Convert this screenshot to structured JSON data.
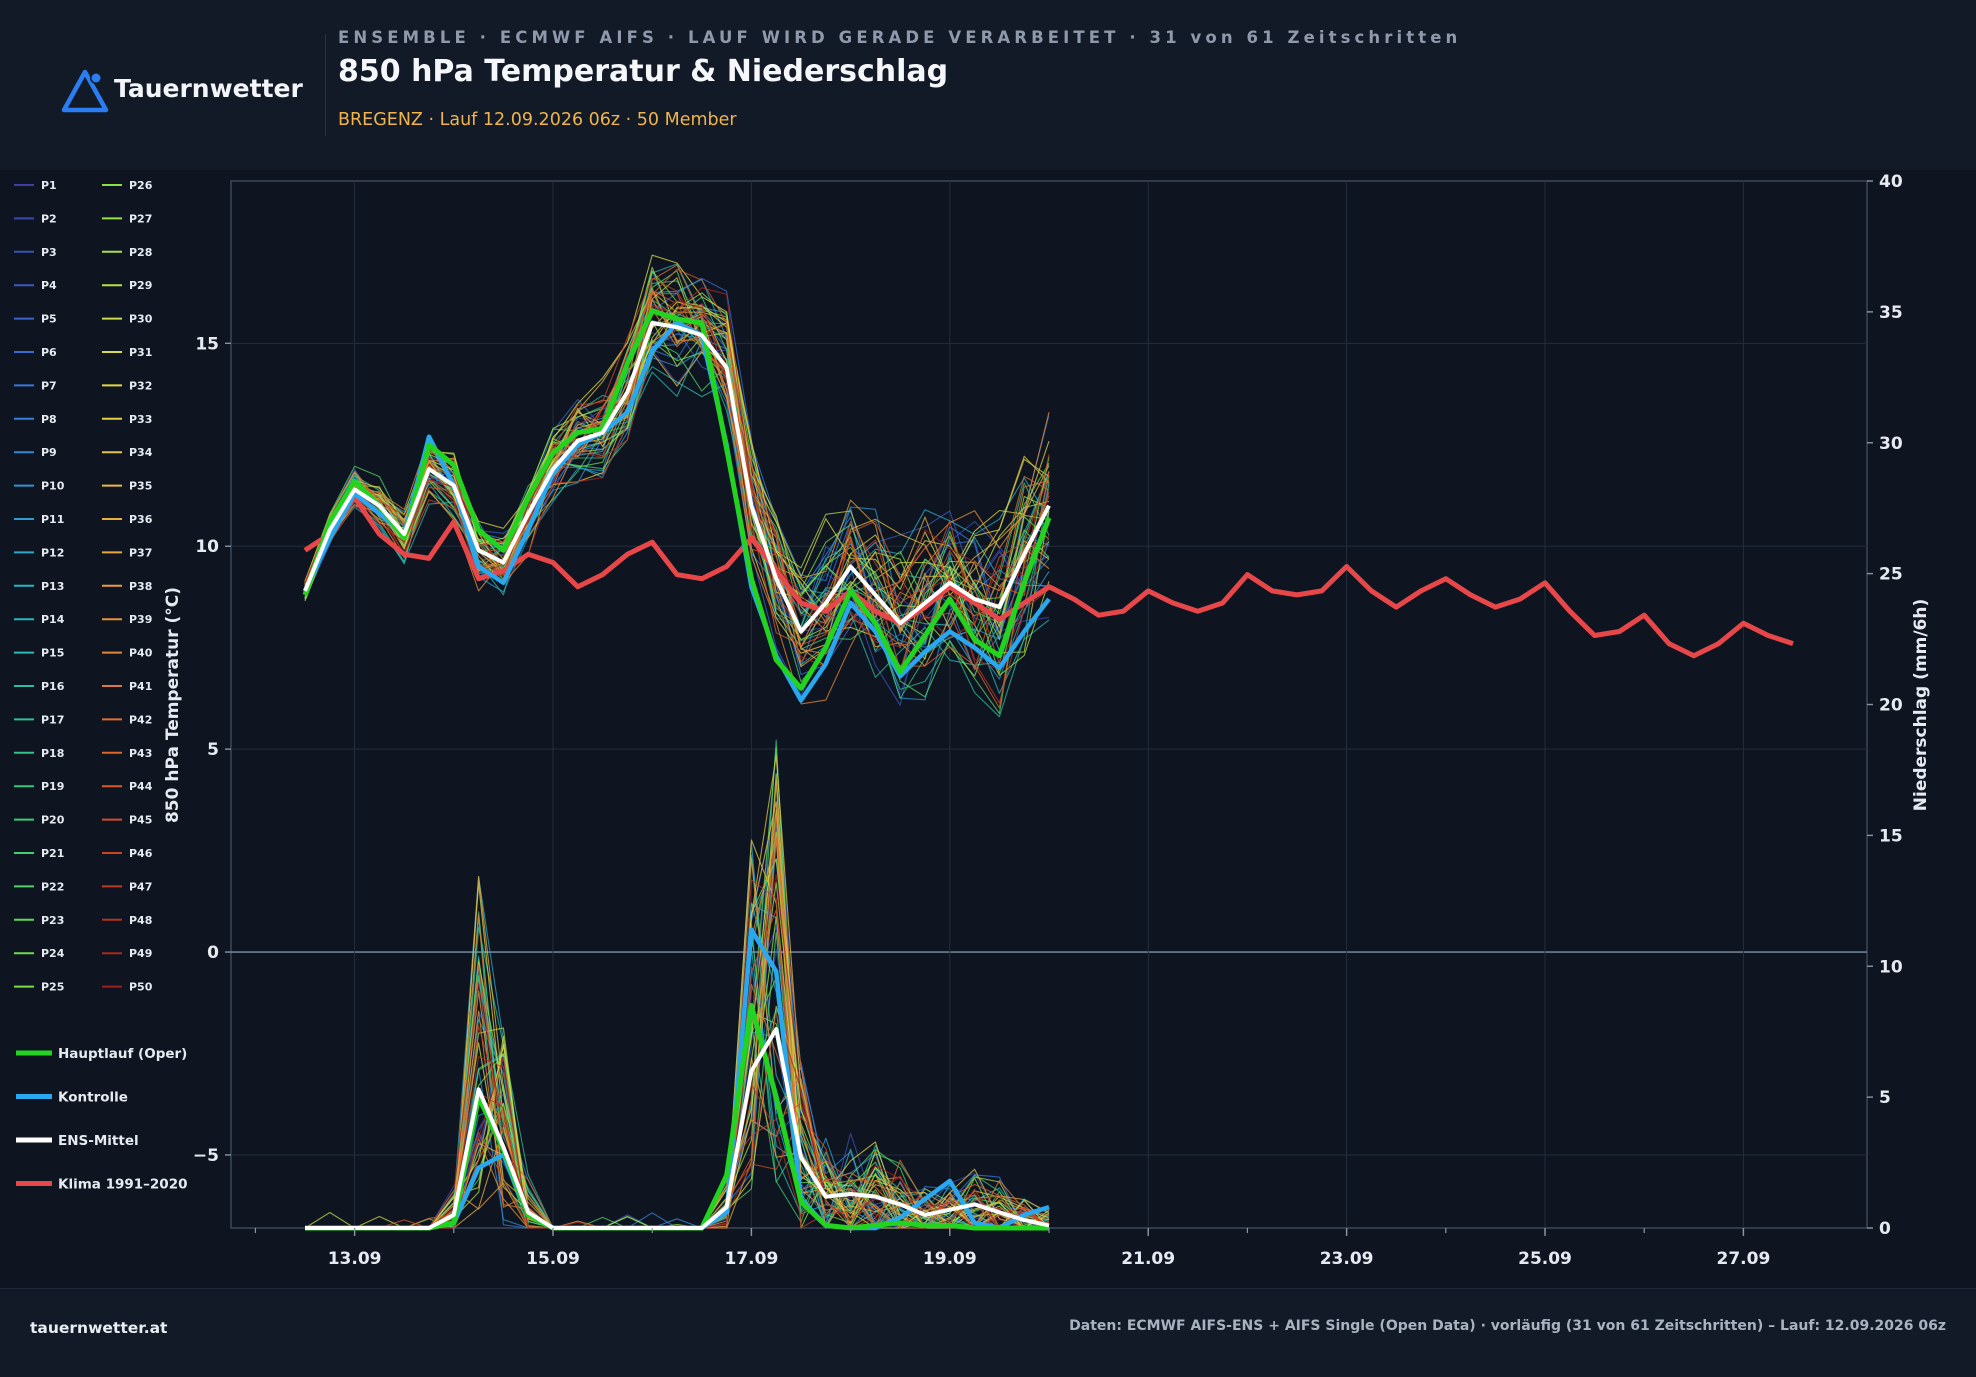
{
  "header": {
    "brand": "Tauernwetter",
    "kicker": "ENSEMBLE · ECMWF AIFS · LAUF WIRD GERADE VERARBEITET · 31 von 61 Zeitschritten",
    "title": "850 hPa Temperatur & Niederschlag",
    "subtitle": "BREGENZ · Lauf 12.09.2026 06z · 50 Member"
  },
  "footer": {
    "site": "tauernwetter.at",
    "source": "Daten: ECMWF AIFS-ENS + AIFS Single (Open Data) · vorläufig (31 von 61 Zeitschritten) – Lauf: 12.09.2026 06z"
  },
  "colors": {
    "oper": "#22d31f",
    "control": "#29a8f0",
    "mean": "#ffffff",
    "climate": "#e8474a",
    "background": "#0f1520"
  },
  "chart_data": {
    "type": "line",
    "ylabel": "850 hPa Temperatur (°C)",
    "y2label": "Niederschlag (mm/6h)",
    "ylim": [
      -6.8,
      19.0
    ],
    "y2lim": [
      0,
      40
    ],
    "y_ticks": [
      -5,
      0,
      5,
      10,
      15
    ],
    "y2_ticks": [
      0,
      5,
      10,
      15,
      20,
      25,
      30,
      35,
      40
    ],
    "x_ticks": [
      "13.09",
      "15.09",
      "17.09",
      "19.09",
      "21.09",
      "23.09",
      "25.09",
      "27.09"
    ],
    "grid": true,
    "legend_position": "left",
    "time_axis": {
      "start": "12.09.2026 12z",
      "step_hours": 6,
      "members_steps": 31,
      "climate_steps": 61
    },
    "members": [
      "P1",
      "P2",
      "P3",
      "P4",
      "P5",
      "P6",
      "P7",
      "P8",
      "P9",
      "P10",
      "P11",
      "P12",
      "P13",
      "P14",
      "P15",
      "P16",
      "P17",
      "P18",
      "P19",
      "P20",
      "P21",
      "P22",
      "P23",
      "P24",
      "P25",
      "P26",
      "P27",
      "P28",
      "P29",
      "P30",
      "P31",
      "P32",
      "P33",
      "P34",
      "P35",
      "P36",
      "P37",
      "P38",
      "P39",
      "P40",
      "P41",
      "P42",
      "P43",
      "P44",
      "P45",
      "P46",
      "P47",
      "P48",
      "P49",
      "P50"
    ],
    "series": [
      {
        "name": "Hauptlauf (Oper)",
        "temperature": [
          8.8,
          10.6,
          11.6,
          11.0,
          10.2,
          12.5,
          12.0,
          10.4,
          9.9,
          11.2,
          12.3,
          12.8,
          12.9,
          14.5,
          15.8,
          15.6,
          15.5,
          12.4,
          9.2,
          7.2,
          6.5,
          7.5,
          8.9,
          8.1,
          6.9,
          7.8,
          8.7,
          7.7,
          7.3,
          9.1,
          10.7
        ],
        "precipitation": [
          0,
          0,
          0,
          0,
          0,
          0,
          0.2,
          5.0,
          3.0,
          0.5,
          0,
          0,
          0,
          0,
          0,
          0,
          0,
          2.0,
          8.5,
          5.0,
          1.0,
          0.1,
          0,
          0.1,
          0.2,
          0.1,
          0.1,
          0,
          0,
          0,
          0
        ]
      },
      {
        "name": "Kontrolle",
        "temperature": [
          8.9,
          10.2,
          11.3,
          10.8,
          10.3,
          12.7,
          11.5,
          9.5,
          9.1,
          10.4,
          11.8,
          12.5,
          12.8,
          13.3,
          14.8,
          15.5,
          15.2,
          12.5,
          9.0,
          7.3,
          6.2,
          7.1,
          8.6,
          7.9,
          6.8,
          7.4,
          7.9,
          7.5,
          7.0,
          7.9,
          8.7
        ],
        "precipitation": [
          0,
          0,
          0,
          0,
          0,
          0,
          0.2,
          2.3,
          2.8,
          0.5,
          0,
          0,
          0,
          0,
          0,
          0,
          0,
          0.6,
          11.4,
          9.8,
          1.1,
          0.1,
          0,
          0,
          0.4,
          1.1,
          1.8,
          0.2,
          0,
          0.5,
          0.8
        ]
      },
      {
        "name": "ENS-Mittel",
        "temperature": [
          8.9,
          10.4,
          11.4,
          11.0,
          10.3,
          11.9,
          11.5,
          9.9,
          9.6,
          10.8,
          11.9,
          12.6,
          12.8,
          13.8,
          15.5,
          15.4,
          15.2,
          14.4,
          11.0,
          9.2,
          7.9,
          8.6,
          9.5,
          8.8,
          8.1,
          8.6,
          9.1,
          8.7,
          8.5,
          9.8,
          11.0
        ],
        "precipitation": [
          0,
          0,
          0,
          0,
          0,
          0,
          0.5,
          5.3,
          3.1,
          0.6,
          0,
          0,
          0,
          0,
          0,
          0,
          0,
          0.8,
          6.0,
          7.6,
          2.7,
          1.2,
          1.3,
          1.2,
          0.9,
          0.5,
          0.7,
          0.9,
          0.6,
          0.3,
          0.1
        ]
      },
      {
        "name": "Klima 1991–2020",
        "temperature": [
          9.9,
          10.3,
          11.2,
          10.3,
          9.8,
          9.7,
          10.6,
          9.2,
          9.4,
          9.8,
          9.6,
          9.0,
          9.3,
          9.8,
          10.1,
          9.3,
          9.2,
          9.5,
          10.2,
          9.4,
          8.6,
          8.4,
          8.9,
          8.4,
          8.1,
          8.5,
          9.0,
          8.6,
          8.2,
          8.6,
          9.0,
          8.7,
          8.3,
          8.4,
          8.9,
          8.6,
          8.4,
          8.6,
          9.3,
          8.9,
          8.8,
          8.9,
          9.5,
          8.9,
          8.5,
          8.9,
          9.2,
          8.8,
          8.5,
          8.7,
          9.1,
          8.4,
          7.8,
          7.9,
          8.3,
          7.6,
          7.3,
          7.6,
          8.1,
          7.8,
          7.6
        ]
      }
    ]
  }
}
